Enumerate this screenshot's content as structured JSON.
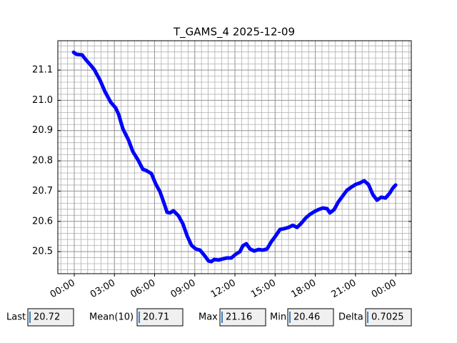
{
  "chart_data": {
    "type": "line",
    "title": "T_GAMS_4 2025-12-09",
    "x": [
      -0.05,
      0.16,
      0.59,
      0.85,
      1.17,
      1.49,
      1.92,
      2.29,
      2.72,
      3.09,
      3.31,
      3.63,
      4.05,
      4.37,
      4.8,
      5.12,
      5.33,
      5.76,
      6.08,
      6.4,
      6.72,
      6.93,
      7.15,
      7.41,
      7.79,
      8.11,
      8.43,
      8.75,
      9.07,
      9.39,
      9.71,
      10.03,
      10.24,
      10.45,
      10.77,
      11.09,
      11.41,
      11.73,
      12.05,
      12.37,
      12.59,
      12.85,
      13.12,
      13.44,
      13.76,
      14.08,
      14.4,
      14.72,
      15.04,
      15.36,
      15.68,
      16.0,
      16.32,
      16.64,
      16.96,
      17.28,
      17.6,
      17.92,
      18.24,
      18.56,
      18.88,
      19.09,
      19.41,
      19.73,
      20.05,
      20.37,
      20.69,
      21.01,
      21.33,
      21.65,
      21.97,
      22.29,
      22.61,
      22.93,
      23.25,
      23.57,
      23.79,
      24.0
    ],
    "series": [
      {
        "name": "T_GAMS_4",
        "color": "#0000ff",
        "values": [
          21.159,
          21.152,
          21.15,
          21.135,
          21.119,
          21.102,
          21.067,
          21.029,
          20.994,
          20.975,
          20.954,
          20.906,
          20.869,
          20.831,
          20.8,
          20.772,
          20.769,
          20.758,
          20.724,
          20.698,
          20.658,
          20.63,
          20.628,
          20.635,
          20.618,
          20.592,
          20.552,
          20.521,
          20.509,
          20.505,
          20.488,
          20.469,
          20.467,
          20.474,
          20.472,
          20.476,
          20.479,
          20.479,
          20.491,
          20.5,
          20.519,
          20.526,
          20.509,
          20.502,
          20.507,
          20.505,
          20.509,
          20.533,
          20.552,
          20.573,
          20.576,
          20.58,
          20.587,
          20.58,
          20.594,
          20.611,
          20.623,
          20.632,
          20.639,
          20.644,
          20.642,
          20.628,
          20.639,
          20.665,
          20.684,
          20.703,
          20.713,
          20.722,
          20.727,
          20.734,
          20.722,
          20.689,
          20.67,
          20.68,
          20.677,
          20.694,
          20.71,
          20.72
        ]
      }
    ],
    "xlim": [
      -1.227,
      25.17
    ],
    "ylim": [
      20.427,
      21.197
    ],
    "xticks": [
      {
        "value": 0,
        "label": "00:00"
      },
      {
        "value": 3,
        "label": "03:00"
      },
      {
        "value": 6,
        "label": "06:00"
      },
      {
        "value": 9,
        "label": "09:00"
      },
      {
        "value": 12,
        "label": "12:00"
      },
      {
        "value": 15,
        "label": "15:00"
      },
      {
        "value": 18,
        "label": "18:00"
      },
      {
        "value": 21,
        "label": "21:00"
      },
      {
        "value": 24,
        "label": "00:00"
      }
    ],
    "yticks": [
      20.5,
      20.6,
      20.7,
      20.8,
      20.9,
      {
        "value": 21,
        "label": "21.0"
      },
      21.1
    ],
    "grid": true,
    "minor_grid": true
  },
  "fields": [
    {
      "label": "Last",
      "value": "20.72"
    },
    {
      "label": "Mean(10)",
      "value": "20.71"
    },
    {
      "label": "Max",
      "value": "21.16"
    },
    {
      "label": "Min",
      "value": "20.46"
    },
    {
      "label": "Delta",
      "value": "0.7025"
    }
  ]
}
